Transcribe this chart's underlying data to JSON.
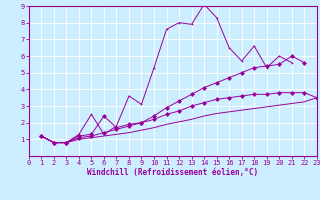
{
  "background_color": "#cceeff",
  "grid_color": "#ffffff",
  "line_color": "#990099",
  "xlabel": "Windchill (Refroidissement éolien,°C)",
  "xlim": [
    0,
    23
  ],
  "ylim": [
    0,
    9
  ],
  "xticks": [
    0,
    1,
    2,
    3,
    4,
    5,
    6,
    7,
    8,
    9,
    10,
    11,
    12,
    13,
    14,
    15,
    16,
    17,
    18,
    19,
    20,
    21,
    22,
    23
  ],
  "yticks": [
    1,
    2,
    3,
    4,
    5,
    6,
    7,
    8,
    9
  ],
  "lines": [
    {
      "x": [
        1,
        2,
        3,
        4,
        5,
        6,
        7,
        8,
        9,
        10,
        11,
        12,
        13,
        14,
        15,
        16,
        17,
        18,
        19,
        20,
        21
      ],
      "y": [
        1.2,
        0.8,
        0.8,
        1.3,
        2.5,
        1.3,
        1.8,
        3.6,
        3.1,
        5.3,
        7.6,
        8.0,
        7.9,
        9.1,
        8.3,
        6.5,
        5.7,
        6.6,
        5.3,
        6.0,
        5.6
      ],
      "marker": "+"
    },
    {
      "x": [
        1,
        2,
        3,
        4,
        5,
        6,
        7,
        8,
        9,
        10,
        11,
        12,
        13,
        14,
        15,
        16,
        17,
        18,
        19,
        20,
        21,
        22
      ],
      "y": [
        1.2,
        0.8,
        0.8,
        1.2,
        1.3,
        2.4,
        1.7,
        1.9,
        2.0,
        2.4,
        2.9,
        3.3,
        3.7,
        4.1,
        4.4,
        4.7,
        5.0,
        5.3,
        5.4,
        5.5,
        6.0,
        5.6
      ],
      "marker": "D"
    },
    {
      "x": [
        1,
        2,
        3,
        4,
        5,
        6,
        7,
        8,
        9,
        10,
        11,
        12,
        13,
        14,
        15,
        16,
        17,
        18,
        19,
        20,
        21,
        22,
        23
      ],
      "y": [
        1.2,
        0.8,
        0.8,
        1.1,
        1.2,
        1.4,
        1.6,
        1.8,
        2.0,
        2.2,
        2.5,
        2.7,
        3.0,
        3.2,
        3.4,
        3.5,
        3.6,
        3.7,
        3.7,
        3.8,
        3.8,
        3.8,
        3.5
      ],
      "marker": "D"
    },
    {
      "x": [
        1,
        2,
        3,
        4,
        5,
        6,
        7,
        8,
        9,
        10,
        11,
        12,
        13,
        14,
        15,
        16,
        17,
        18,
        19,
        20,
        21,
        22,
        23
      ],
      "y": [
        1.2,
        0.8,
        0.8,
        1.0,
        1.1,
        1.2,
        1.3,
        1.4,
        1.55,
        1.7,
        1.9,
        2.05,
        2.2,
        2.4,
        2.55,
        2.65,
        2.75,
        2.85,
        2.95,
        3.05,
        3.15,
        3.25,
        3.5
      ],
      "marker": null
    }
  ],
  "tick_fontsize": 5,
  "label_fontsize": 5.5
}
